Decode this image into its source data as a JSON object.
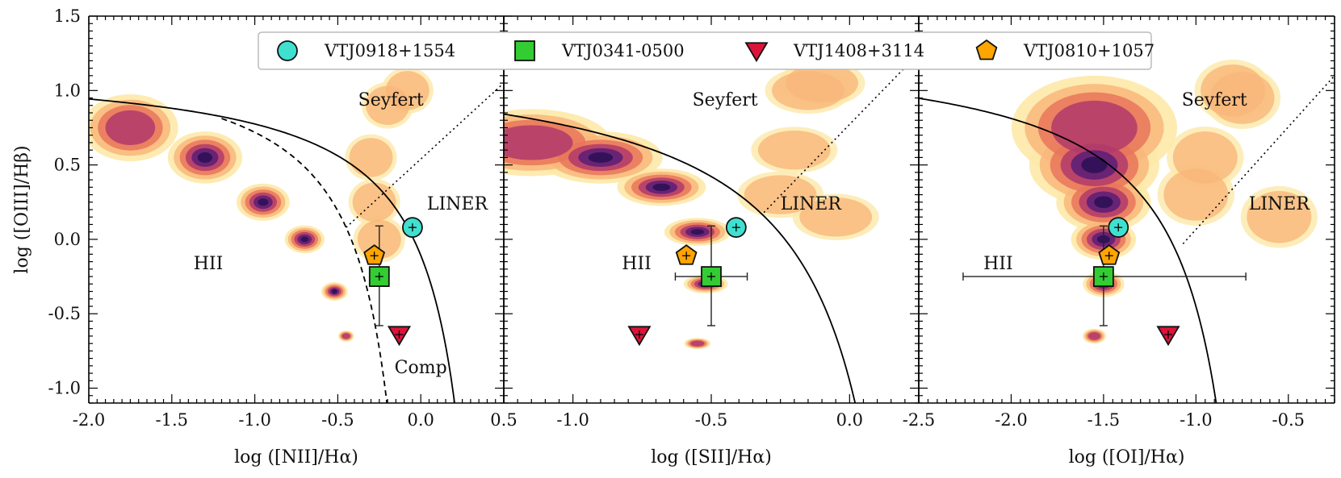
{
  "chart_data": [
    {
      "type": "scatter",
      "panel": "nii",
      "xlabel": "log ([NII]/Hα)",
      "ylabel": "log ([OIII]/Hβ)",
      "xlim": [
        -2.0,
        0.5
      ],
      "ylim": [
        -1.1,
        1.5
      ],
      "xticks": [
        "-2.0",
        "-1.5",
        "-1.0",
        "-0.5",
        "0.0",
        "0.5"
      ],
      "xtick_values": [
        -2.0,
        -1.5,
        -1.0,
        -0.5,
        0.0,
        0.5
      ],
      "yticks": [
        "-1.0",
        "-0.5",
        "0.0",
        "0.5",
        "1.0",
        "1.5"
      ],
      "ytick_values": [
        -1.0,
        -0.5,
        0.0,
        0.5,
        1.0,
        1.5
      ],
      "region_labels": [
        "Seyfert",
        "LINER",
        "HII",
        "Comp"
      ],
      "series": [
        {
          "name": "VTJ0918+1554",
          "x": -0.05,
          "y": 0.08
        },
        {
          "name": "VTJ0341-0500",
          "x": -0.25,
          "y": -0.25,
          "yerr": [
            0.33,
            0.34
          ]
        },
        {
          "name": "VTJ1408+3114",
          "x": -0.13,
          "y": -0.64
        },
        {
          "name": "VTJ0810+1057",
          "x": -0.28,
          "y": -0.11
        }
      ]
    },
    {
      "type": "scatter",
      "panel": "sii",
      "xlabel": "log ([SII]/Hα)",
      "xlim": [
        -1.25,
        0.25
      ],
      "ylim": [
        -1.1,
        1.5
      ],
      "xticks": [
        "-1.0",
        "-0.5",
        "0.0"
      ],
      "xtick_values": [
        -1.0,
        -0.5,
        0.0
      ],
      "region_labels": [
        "Seyfert",
        "LINER",
        "HII"
      ],
      "series": [
        {
          "name": "VTJ0918+1554",
          "x": -0.41,
          "y": 0.08
        },
        {
          "name": "VTJ0341-0500",
          "x": -0.5,
          "y": -0.25,
          "xerr": [
            0.13,
            0.13
          ],
          "yerr": [
            0.33,
            0.34
          ]
        },
        {
          "name": "VTJ1408+3114",
          "x": -0.76,
          "y": -0.64
        },
        {
          "name": "VTJ0810+1057",
          "x": -0.59,
          "y": -0.11
        }
      ]
    },
    {
      "type": "scatter",
      "panel": "oi",
      "xlabel": "log ([OI]/Hα)",
      "xlim": [
        -2.5,
        -0.25
      ],
      "ylim": [
        -1.1,
        1.5
      ],
      "xticks": [
        "-2.5",
        "-2.0",
        "-1.5",
        "-1.0",
        "-0.5"
      ],
      "xtick_values": [
        -2.5,
        -2.0,
        -1.5,
        -1.0,
        -0.5
      ],
      "region_labels": [
        "Seyfert",
        "LINER",
        "HII"
      ],
      "series": [
        {
          "name": "VTJ0918+1554",
          "x": -1.42,
          "y": 0.08
        },
        {
          "name": "VTJ0341-0500",
          "x": -1.5,
          "y": -0.25,
          "xerr": [
            0.76,
            0.77
          ],
          "yerr": [
            0.33,
            0.34
          ]
        },
        {
          "name": "VTJ1408+3114",
          "x": -1.15,
          "y": -0.64
        },
        {
          "name": "VTJ0810+1057",
          "x": -1.47,
          "y": -0.11
        }
      ]
    }
  ],
  "legend": [
    {
      "name": "VTJ0918+1554",
      "marker": "circle",
      "color": "#40e0d0"
    },
    {
      "name": "VTJ0341-0500",
      "marker": "square",
      "color": "#33cc33"
    },
    {
      "name": "VTJ1408+3114",
      "marker": "triangle-down",
      "color": "#dc143c"
    },
    {
      "name": "VTJ0810+1057",
      "marker": "pentagon",
      "color": "#ffa500"
    }
  ],
  "legend_position": "top-center",
  "density_colormap": [
    "#fde9a9",
    "#f9b77b",
    "#e8765a",
    "#b23a6b",
    "#5b1d78",
    "#2b0f56"
  ]
}
